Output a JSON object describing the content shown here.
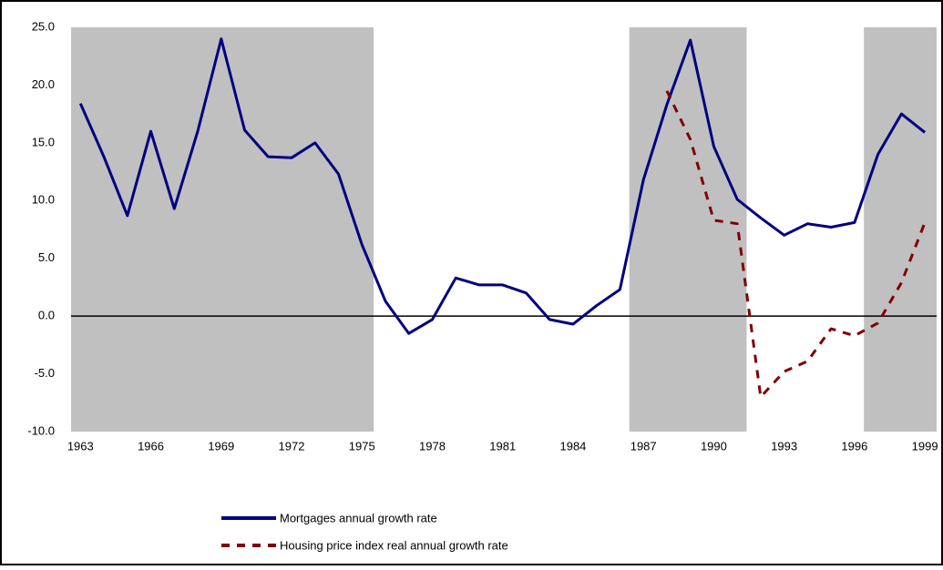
{
  "chart_data": {
    "type": "line",
    "x": [
      1963,
      1964,
      1965,
      1966,
      1967,
      1968,
      1969,
      1970,
      1971,
      1972,
      1973,
      1974,
      1975,
      1976,
      1977,
      1978,
      1979,
      1980,
      1981,
      1982,
      1983,
      1984,
      1985,
      1986,
      1987,
      1988,
      1989,
      1990,
      1991,
      1992,
      1993,
      1994,
      1995,
      1996,
      1997,
      1998,
      1999
    ],
    "series": [
      {
        "name": "Mortgages annual growth rate",
        "color": "#000080",
        "values": [
          18.4,
          13.8,
          8.7,
          16.0,
          9.3,
          16.0,
          24.0,
          16.1,
          13.8,
          13.7,
          15.0,
          12.3,
          6.2,
          1.3,
          -1.5,
          -0.3,
          3.3,
          2.7,
          2.7,
          2.0,
          -0.3,
          -0.7,
          0.9,
          2.3,
          11.8,
          18.3,
          23.9,
          14.7,
          10.1,
          8.5,
          7.0,
          8.0,
          7.7,
          8.1,
          14.0,
          17.5,
          15.9
        ]
      },
      {
        "name": "Housing price index real annual growth rate",
        "color": "#800000",
        "dashed": true,
        "values": [
          null,
          null,
          null,
          null,
          null,
          null,
          null,
          null,
          null,
          null,
          null,
          null,
          null,
          null,
          null,
          null,
          null,
          null,
          null,
          null,
          null,
          null,
          null,
          null,
          null,
          19.5,
          15.3,
          8.3,
          8.0,
          -7.0,
          -4.8,
          -3.9,
          -1.1,
          -1.7,
          -0.6,
          2.9,
          8.1
        ]
      }
    ],
    "shaded_periods": [
      {
        "start": 1962.6,
        "end": 1975.5
      },
      {
        "start": 1986.4,
        "end": 1991.4
      },
      {
        "start": 1996.4,
        "end": 1999.5
      }
    ],
    "shade_color": "#c0c0c0",
    "xlim": [
      1962.6,
      1999.5
    ],
    "xticks": [
      1963,
      1966,
      1969,
      1972,
      1975,
      1978,
      1981,
      1984,
      1987,
      1990,
      1993,
      1996,
      1999
    ],
    "ylim": [
      -10,
      25
    ],
    "yticks": [
      {
        "value": -10,
        "label": "-10.0"
      },
      {
        "value": -5,
        "label": "-5.0"
      },
      {
        "value": 0,
        "label": "0.0"
      },
      {
        "value": 5,
        "label": "5.0"
      },
      {
        "value": 10,
        "label": "10.0"
      },
      {
        "value": 15,
        "label": "15.0"
      },
      {
        "value": 20,
        "label": "20.0"
      },
      {
        "value": 25,
        "label": "25.0"
      }
    ],
    "legend": "bottom"
  }
}
